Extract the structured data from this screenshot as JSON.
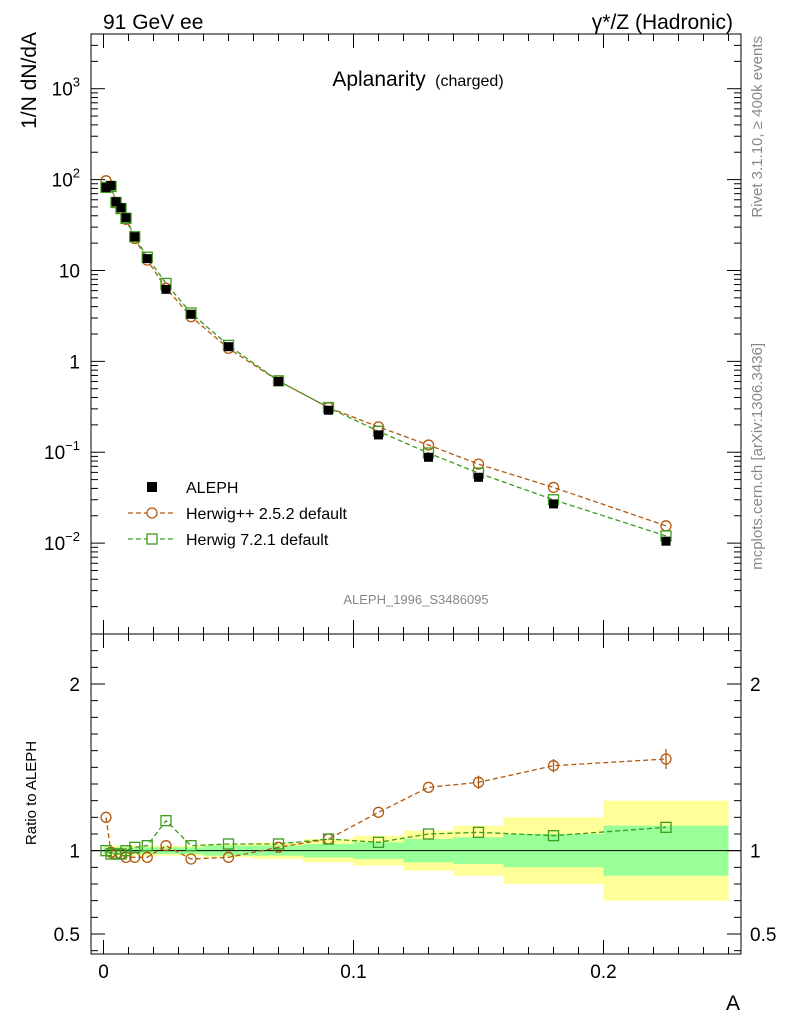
{
  "header": {
    "left": "91 GeV ee",
    "right": "γ*/Z (Hadronic)"
  },
  "side_labels": {
    "rivet": "Rivet 3.1.10, ≥ 400k events",
    "mcplots": "mcplots.cern.ch [arXiv:1306.3436]"
  },
  "watermark": "ALEPH_1996_S3486095",
  "chart_data": {
    "type": "scatter",
    "title": "Aplanarity",
    "title_suffix": "(charged)",
    "xlabel": "A",
    "ylabel": "1/N dN/dA",
    "ratio_ylabel": "Ratio to ALEPH",
    "xlim": [
      -0.005,
      0.255
    ],
    "ylim": [
      0.001,
      4000
    ],
    "yscale": "log",
    "ratio_ylim": [
      0.38,
      2.3
    ],
    "x_ticks": [
      "0",
      "0.1",
      "0.2"
    ],
    "y_ticks_main": [
      "10^-2",
      "10^-1",
      "1",
      "10",
      "10^2",
      "10^3"
    ],
    "y_ticks_ratio": [
      "0.5",
      "1",
      "2"
    ],
    "legend_position": "bottom-left",
    "colors": {
      "data": "#000000",
      "herwigpp": "#b35a10",
      "herwig7": "#3c9c1e",
      "band_inner": "#99ff99",
      "band_outer": "#ffff99"
    },
    "data": {
      "name": "ALEPH",
      "bins": [
        [
          0.0,
          0.002
        ],
        [
          0.002,
          0.004
        ],
        [
          0.004,
          0.006
        ],
        [
          0.006,
          0.008
        ],
        [
          0.008,
          0.01
        ],
        [
          0.01,
          0.015
        ],
        [
          0.015,
          0.02
        ],
        [
          0.02,
          0.03
        ],
        [
          0.03,
          0.04
        ],
        [
          0.04,
          0.06
        ],
        [
          0.06,
          0.08
        ],
        [
          0.08,
          0.1
        ],
        [
          0.1,
          0.12
        ],
        [
          0.12,
          0.14
        ],
        [
          0.14,
          0.16
        ],
        [
          0.16,
          0.2
        ],
        [
          0.2,
          0.25
        ]
      ],
      "x": [
        0.001,
        0.003,
        0.005,
        0.007,
        0.009,
        0.0125,
        0.0175,
        0.025,
        0.035,
        0.05,
        0.07,
        0.09,
        0.11,
        0.13,
        0.15,
        0.18,
        0.225
      ],
      "y": [
        82,
        86,
        57,
        49,
        38,
        23.5,
        13.5,
        6.2,
        3.3,
        1.45,
        0.6,
        0.29,
        0.155,
        0.088,
        0.053,
        0.027,
        0.0105
      ]
    },
    "series": [
      {
        "name": "Herwig++ 2.5.2 default",
        "x": [
          0.001,
          0.003,
          0.005,
          0.007,
          0.009,
          0.0125,
          0.0175,
          0.025,
          0.035,
          0.05,
          0.07,
          0.09,
          0.11,
          0.13,
          0.15,
          0.18,
          0.225
        ],
        "y": [
          97,
          85,
          56,
          48,
          36.5,
          22.5,
          13,
          6.4,
          3.1,
          1.39,
          0.61,
          0.31,
          0.19,
          0.12,
          0.074,
          0.041,
          0.0155
        ],
        "ratio": [
          1.2,
          0.99,
          0.98,
          0.98,
          0.96,
          0.96,
          0.96,
          1.03,
          0.95,
          0.96,
          1.02,
          1.07,
          1.23,
          1.38,
          1.41,
          1.51,
          1.55
        ],
        "ratio_err": [
          0,
          0,
          0,
          0,
          0,
          0,
          0,
          0,
          0,
          0,
          0,
          0,
          0,
          0,
          0.04,
          0.04,
          0.06
        ]
      },
      {
        "name": "Herwig 7.2.1 default",
        "x": [
          0.001,
          0.003,
          0.005,
          0.007,
          0.009,
          0.0125,
          0.0175,
          0.025,
          0.035,
          0.05,
          0.07,
          0.09,
          0.11,
          0.13,
          0.15,
          0.18,
          0.225
        ],
        "y": [
          82,
          84,
          56,
          48,
          37.5,
          23.5,
          14,
          7.2,
          3.4,
          1.5,
          0.61,
          0.31,
          0.17,
          0.098,
          0.059,
          0.03,
          0.012
        ],
        "ratio": [
          1.0,
          0.98,
          0.98,
          0.98,
          1.0,
          1.02,
          1.03,
          1.18,
          1.03,
          1.04,
          1.04,
          1.07,
          1.05,
          1.1,
          1.11,
          1.09,
          1.14
        ],
        "ratio_err": [
          0,
          0,
          0,
          0,
          0,
          0,
          0,
          0,
          0,
          0,
          0,
          0,
          0,
          0,
          0,
          0,
          0
        ]
      }
    ],
    "ratio_bands": {
      "inner_halfwidth": [
        0.02,
        0.02,
        0.02,
        0.02,
        0.02,
        0.02,
        0.02,
        0.02,
        0.02,
        0.03,
        0.03,
        0.04,
        0.05,
        0.07,
        0.08,
        0.1,
        0.15
      ],
      "outer_halfwidth": [
        0.03,
        0.03,
        0.03,
        0.03,
        0.03,
        0.03,
        0.03,
        0.03,
        0.03,
        0.04,
        0.05,
        0.07,
        0.09,
        0.12,
        0.15,
        0.2,
        0.3
      ]
    }
  }
}
